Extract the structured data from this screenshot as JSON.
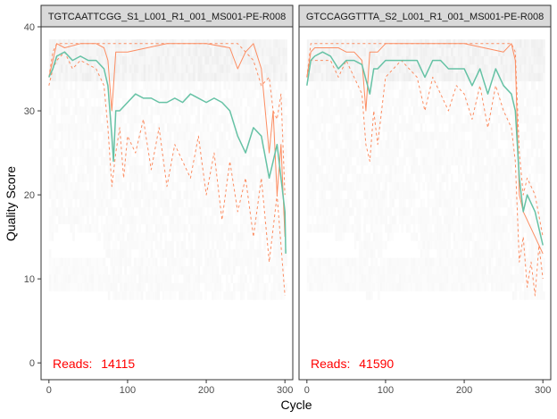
{
  "chart_data": {
    "type": "line",
    "xlabel": "Cycle",
    "ylabel": "Quality Score",
    "xlim": [
      -10,
      310
    ],
    "ylim": [
      -2,
      40
    ],
    "x_ticks": [
      0,
      100,
      200,
      300
    ],
    "y_ticks": [
      0,
      10,
      20,
      30,
      40
    ],
    "colors": {
      "mean": "#66C2A5",
      "quartile": "#FC8D62",
      "reads": "#FF0000",
      "heat": "#BDBDBD"
    },
    "panels": [
      {
        "strip": "TGTCAATTCGG_S1_L001_R1_001_MS001-PE-R008",
        "reads_prefix": "Reads:",
        "reads": "14115",
        "max_cycle": 301,
        "mean": [
          [
            0,
            34
          ],
          [
            5,
            35
          ],
          [
            10,
            36.5
          ],
          [
            20,
            37
          ],
          [
            30,
            36
          ],
          [
            40,
            36.5
          ],
          [
            50,
            36
          ],
          [
            60,
            36
          ],
          [
            70,
            35
          ],
          [
            75,
            33
          ],
          [
            80,
            27
          ],
          [
            82,
            24
          ],
          [
            85,
            30
          ],
          [
            90,
            30
          ],
          [
            100,
            31
          ],
          [
            110,
            32
          ],
          [
            120,
            31.5
          ],
          [
            130,
            31.5
          ],
          [
            140,
            31
          ],
          [
            150,
            31
          ],
          [
            160,
            31.5
          ],
          [
            170,
            31
          ],
          [
            180,
            32
          ],
          [
            190,
            31.5
          ],
          [
            200,
            31
          ],
          [
            210,
            31.5
          ],
          [
            220,
            31
          ],
          [
            230,
            30
          ],
          [
            240,
            27
          ],
          [
            250,
            25
          ],
          [
            260,
            28
          ],
          [
            270,
            27
          ],
          [
            280,
            22
          ],
          [
            290,
            26
          ],
          [
            300,
            18
          ],
          [
            301,
            13
          ]
        ],
        "median": [
          [
            0,
            34
          ],
          [
            5,
            36
          ],
          [
            10,
            38
          ],
          [
            20,
            37.5
          ],
          [
            40,
            38
          ],
          [
            60,
            38
          ],
          [
            70,
            37.5
          ],
          [
            75,
            36
          ],
          [
            80,
            30
          ],
          [
            85,
            37
          ],
          [
            100,
            37
          ],
          [
            150,
            38
          ],
          [
            180,
            38
          ],
          [
            200,
            38
          ],
          [
            230,
            37.5
          ],
          [
            240,
            35
          ],
          [
            250,
            37
          ],
          [
            260,
            38
          ],
          [
            270,
            35
          ],
          [
            280,
            25
          ],
          [
            285,
            30
          ],
          [
            290,
            20
          ],
          [
            295,
            26
          ],
          [
            300,
            15
          ]
        ],
        "q25": [
          [
            0,
            33
          ],
          [
            5,
            35
          ],
          [
            10,
            36
          ],
          [
            20,
            37
          ],
          [
            30,
            35
          ],
          [
            40,
            36
          ],
          [
            60,
            35
          ],
          [
            70,
            33
          ],
          [
            75,
            28
          ],
          [
            80,
            21
          ],
          [
            85,
            25
          ],
          [
            90,
            28
          ],
          [
            95,
            22
          ],
          [
            100,
            27
          ],
          [
            110,
            25
          ],
          [
            120,
            29
          ],
          [
            130,
            23
          ],
          [
            140,
            28
          ],
          [
            150,
            21
          ],
          [
            160,
            26
          ],
          [
            170,
            24
          ],
          [
            180,
            22
          ],
          [
            190,
            27
          ],
          [
            200,
            20
          ],
          [
            210,
            25
          ],
          [
            220,
            17
          ],
          [
            230,
            24
          ],
          [
            240,
            18
          ],
          [
            250,
            22
          ],
          [
            260,
            15
          ],
          [
            270,
            22
          ],
          [
            280,
            12
          ],
          [
            290,
            20
          ],
          [
            300,
            8
          ]
        ],
        "q75": [
          [
            0,
            34
          ],
          [
            5,
            37
          ],
          [
            10,
            38
          ],
          [
            20,
            38
          ],
          [
            100,
            38
          ],
          [
            150,
            38
          ],
          [
            200,
            38
          ],
          [
            240,
            38
          ],
          [
            250,
            37
          ],
          [
            260,
            36
          ],
          [
            270,
            33
          ],
          [
            280,
            34
          ],
          [
            285,
            30
          ],
          [
            290,
            29
          ],
          [
            295,
            32
          ],
          [
            300,
            20
          ]
        ]
      },
      {
        "strip": "GTCCAGGTTTA_S2_L001_R1_001_MS001-PE-R008",
        "reads_prefix": "Reads:",
        "reads": "41590",
        "max_cycle": 301,
        "mean": [
          [
            0,
            33
          ],
          [
            5,
            36
          ],
          [
            10,
            36.5
          ],
          [
            20,
            37
          ],
          [
            30,
            36.5
          ],
          [
            40,
            35
          ],
          [
            50,
            36
          ],
          [
            60,
            36
          ],
          [
            70,
            35.5
          ],
          [
            80,
            32
          ],
          [
            85,
            35
          ],
          [
            90,
            35
          ],
          [
            100,
            36
          ],
          [
            120,
            36
          ],
          [
            140,
            36
          ],
          [
            150,
            34
          ],
          [
            160,
            36
          ],
          [
            170,
            36
          ],
          [
            180,
            35
          ],
          [
            190,
            35
          ],
          [
            200,
            35
          ],
          [
            210,
            33
          ],
          [
            220,
            35
          ],
          [
            230,
            32
          ],
          [
            240,
            35
          ],
          [
            250,
            33
          ],
          [
            260,
            32
          ],
          [
            265,
            30
          ],
          [
            270,
            22
          ],
          [
            275,
            18
          ],
          [
            280,
            20
          ],
          [
            290,
            18
          ],
          [
            300,
            14
          ]
        ],
        "median": [
          [
            0,
            34
          ],
          [
            5,
            37
          ],
          [
            10,
            37.5
          ],
          [
            40,
            37.5
          ],
          [
            50,
            37
          ],
          [
            60,
            37
          ],
          [
            70,
            36
          ],
          [
            75,
            30
          ],
          [
            80,
            37
          ],
          [
            90,
            37
          ],
          [
            100,
            38
          ],
          [
            150,
            38
          ],
          [
            200,
            38
          ],
          [
            250,
            37
          ],
          [
            260,
            38
          ],
          [
            265,
            36
          ],
          [
            270,
            20
          ],
          [
            275,
            18
          ],
          [
            280,
            17
          ],
          [
            285,
            16
          ],
          [
            290,
            15
          ],
          [
            300,
            13
          ]
        ],
        "q25": [
          [
            0,
            34
          ],
          [
            5,
            36
          ],
          [
            10,
            36
          ],
          [
            20,
            36
          ],
          [
            30,
            36
          ],
          [
            40,
            34
          ],
          [
            50,
            36
          ],
          [
            60,
            34
          ],
          [
            70,
            32
          ],
          [
            75,
            26
          ],
          [
            80,
            24
          ],
          [
            85,
            30
          ],
          [
            90,
            26
          ],
          [
            95,
            30
          ],
          [
            100,
            34
          ],
          [
            120,
            36
          ],
          [
            140,
            34
          ],
          [
            150,
            30
          ],
          [
            160,
            34
          ],
          [
            180,
            30
          ],
          [
            190,
            33
          ],
          [
            200,
            32
          ],
          [
            210,
            29
          ],
          [
            220,
            33
          ],
          [
            230,
            28
          ],
          [
            240,
            33
          ],
          [
            250,
            30
          ],
          [
            260,
            28
          ],
          [
            265,
            24
          ],
          [
            270,
            12
          ],
          [
            275,
            15
          ],
          [
            280,
            9
          ],
          [
            285,
            12
          ],
          [
            290,
            8
          ],
          [
            295,
            14
          ],
          [
            300,
            10
          ]
        ],
        "q75": [
          [
            0,
            34
          ],
          [
            5,
            38
          ],
          [
            50,
            38
          ],
          [
            100,
            38
          ],
          [
            200,
            38
          ],
          [
            250,
            38
          ],
          [
            260,
            38
          ],
          [
            265,
            37
          ],
          [
            270,
            25
          ],
          [
            275,
            20
          ],
          [
            280,
            22
          ],
          [
            290,
            20
          ],
          [
            300,
            15
          ]
        ]
      }
    ]
  }
}
